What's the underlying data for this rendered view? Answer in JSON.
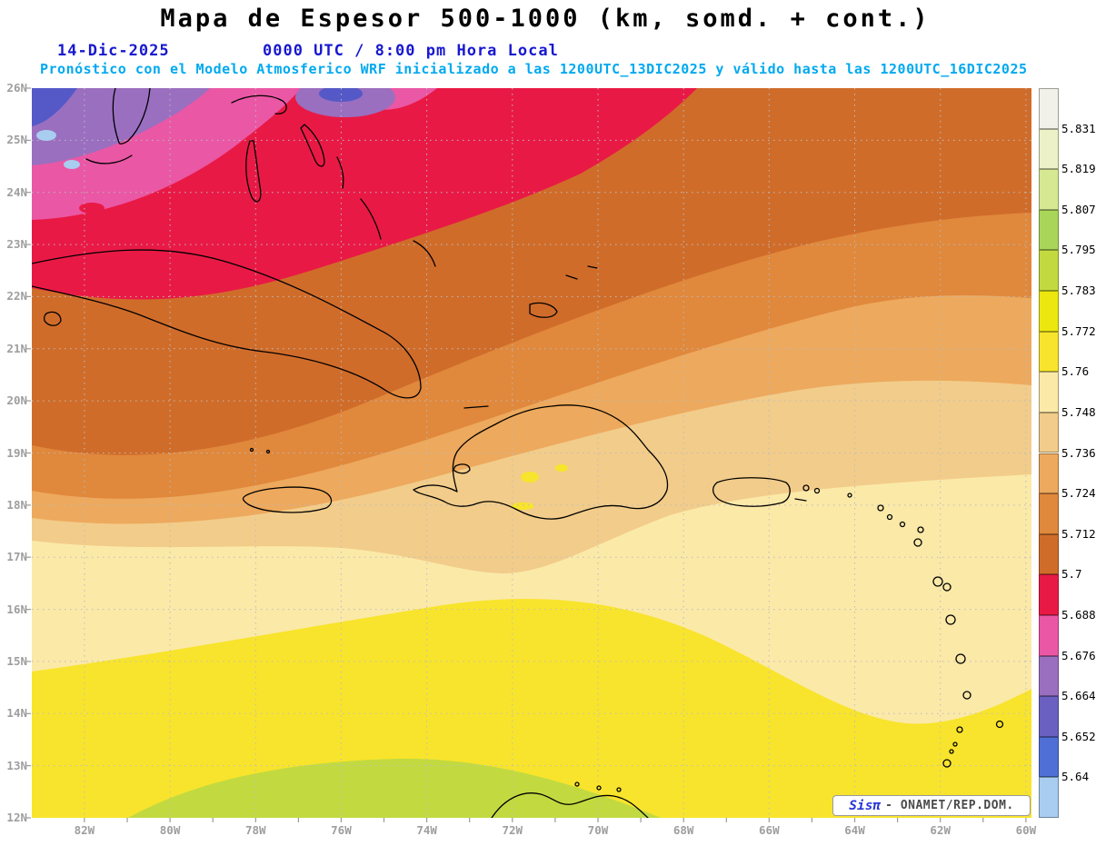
{
  "header": {
    "title": "Mapa de Espesor 500-1000 (km, somd. + cont.)",
    "date": "14-Dic-2025",
    "time_local": "0000 UTC / 8:00 pm Hora Local",
    "model_line": "Pronóstico con el Modelo Atmosferico WRF inicializado a las 1200UTC_13DIC2025 y válido hasta las  1200UTC_16DIC2025"
  },
  "map": {
    "lat_labels": [
      "26N",
      "25N",
      "24N",
      "23N",
      "22N",
      "21N",
      "20N",
      "19N",
      "18N",
      "17N",
      "16N",
      "15N",
      "14N",
      "13N",
      "12N"
    ],
    "lon_labels": [
      "82W",
      "80W",
      "78W",
      "76W",
      "74W",
      "72W",
      "70W",
      "68W",
      "66W",
      "64W",
      "62W",
      "60W"
    ],
    "grid_color": "#bcbcbc",
    "tick_color": "#9a9a9a",
    "coastline_color": "#000000",
    "band_colors": {
      "blue": "#5559c7",
      "light-blue": "#a8cdf0",
      "purple": "#9a6fc0",
      "magenta": "#ea57a5",
      "red": "#e91945",
      "rust": "#d06c2a",
      "dark-orange": "#e0883c",
      "orange": "#eda95d",
      "tan": "#f2cc8a",
      "cream": "#fbe9a8",
      "yellow": "#f8e42c",
      "green": "#c2da40"
    }
  },
  "legend": {
    "values": [
      "5.831",
      "5.819",
      "5.807",
      "5.795",
      "5.783",
      "5.772",
      "5.76",
      "5.748",
      "5.736",
      "5.724",
      "5.712",
      "5.7",
      "5.688",
      "5.676",
      "5.664",
      "5.652",
      "5.64"
    ],
    "box_colors": [
      "#f2f1e9",
      "#ecf1c7",
      "#d6e992",
      "#a9d658",
      "#c2da40",
      "#ece70f",
      "#f8e42c",
      "#fbe9a8",
      "#f2cc8a",
      "#eda95d",
      "#e0883c",
      "#d06c2a",
      "#e91945",
      "#ea57a5",
      "#9a6fc0",
      "#6a60c2",
      "#4f6fd6",
      "#a8cdf0"
    ]
  },
  "credit": {
    "brand": "Sisπ",
    "text": "- ONAMET/REP.DOM."
  }
}
